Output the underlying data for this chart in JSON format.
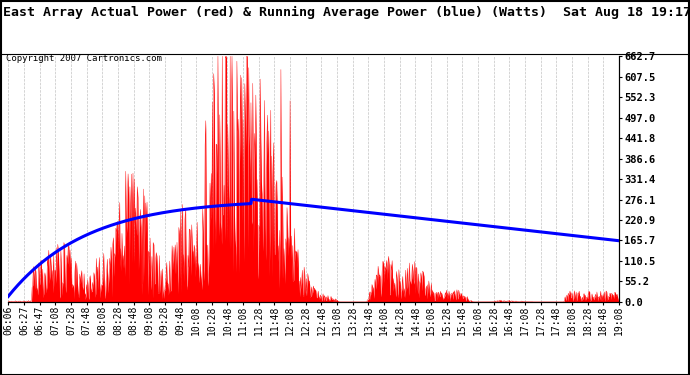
{
  "title": "East Array Actual Power (red) & Running Average Power (blue) (Watts)  Sat Aug 18 19:17",
  "copyright": "Copyright 2007 Cartronics.com",
  "ylabel_right": [
    "662.7",
    "607.5",
    "552.3",
    "497.0",
    "441.8",
    "386.6",
    "331.4",
    "276.1",
    "220.9",
    "165.7",
    "110.5",
    "55.2",
    "0.0"
  ],
  "ymax": 662.7,
  "ymin": 0.0,
  "background_color": "#ffffff",
  "plot_bg_color": "#ffffff",
  "grid_color": "#aaaaaa",
  "actual_color": "red",
  "avg_color": "blue",
  "title_fontsize": 9.5,
  "copyright_fontsize": 6.5,
  "tick_fontsize": 7,
  "x_tick_labels": [
    "06:06",
    "06:27",
    "06:47",
    "07:08",
    "07:28",
    "07:48",
    "08:08",
    "08:28",
    "08:48",
    "09:08",
    "09:28",
    "09:48",
    "10:08",
    "10:28",
    "10:48",
    "11:08",
    "11:28",
    "11:48",
    "12:08",
    "12:28",
    "12:48",
    "13:08",
    "13:28",
    "13:48",
    "14:08",
    "14:28",
    "14:48",
    "15:08",
    "15:28",
    "15:48",
    "16:08",
    "16:28",
    "16:48",
    "17:08",
    "17:28",
    "17:48",
    "18:08",
    "18:28",
    "18:48",
    "19:08"
  ]
}
